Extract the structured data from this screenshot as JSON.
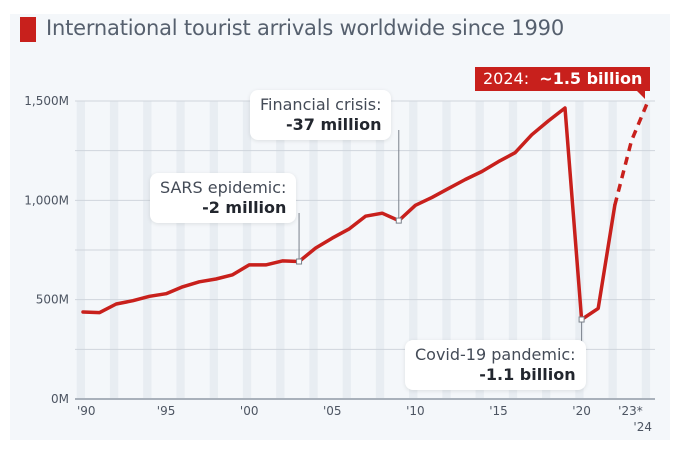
{
  "title": "International tourist arrivals worldwide since 1990",
  "colors": {
    "accent": "#c8201c",
    "line": "#c8201c",
    "background": "#f4f7fa",
    "grid": "#cfd5dc",
    "stripe": "#e8edf2"
  },
  "annotations": {
    "sars": {
      "label": "SARS epidemic:",
      "value": "-2 million",
      "year": 2003
    },
    "financial": {
      "label": "Financial crisis:",
      "value": "-37 million",
      "year": 2009
    },
    "covid": {
      "label": "Covid-19 pandemic:",
      "value": "-1.1 billion",
      "year": 2020
    },
    "forecast": {
      "prefix": "2024:",
      "value": "~1.5 billion",
      "year": 2024
    }
  },
  "chart_data": {
    "type": "line",
    "title": "International tourist arrivals worldwide since 1990",
    "xlabel": "",
    "ylabel": "",
    "ylim": [
      0,
      1500
    ],
    "y_ticks": [
      0,
      500,
      1000,
      1500
    ],
    "y_tick_labels": [
      "0M",
      "500M",
      "1,000M",
      "1,500M"
    ],
    "y_gridlines": [
      0,
      250,
      500,
      750,
      1000,
      1250,
      1500
    ],
    "x_tick_years": [
      1990,
      1995,
      2000,
      2005,
      2010,
      2015,
      2020,
      2023,
      2024
    ],
    "x_tick_labels": [
      "'90",
      "'95",
      "'00",
      "'05",
      "'10",
      "'15",
      "'20",
      "'23*",
      "'24"
    ],
    "grid": true,
    "legend": "none",
    "units": "million arrivals",
    "series": [
      {
        "name": "International tourist arrivals (actual)",
        "style": "solid",
        "x": [
          1990,
          1991,
          1992,
          1993,
          1994,
          1995,
          1996,
          1997,
          1998,
          1999,
          2000,
          2001,
          2002,
          2003,
          2004,
          2005,
          2006,
          2007,
          2008,
          2009,
          2010,
          2011,
          2012,
          2013,
          2014,
          2015,
          2016,
          2017,
          2018,
          2019,
          2020,
          2021,
          2022
        ],
        "values": [
          438,
          435,
          478,
          495,
          517,
          530,
          565,
          590,
          604,
          625,
          675,
          675,
          695,
          692,
          760,
          810,
          855,
          920,
          935,
          898,
          975,
          1015,
          1060,
          1105,
          1145,
          1195,
          1240,
          1330,
          1400,
          1465,
          400,
          456,
          975
        ]
      },
      {
        "name": "International tourist arrivals (estimate/forecast)",
        "style": "dashed",
        "x": [
          2022,
          2023,
          2024
        ],
        "values": [
          975,
          1300,
          1500
        ]
      }
    ],
    "marked_points": [
      {
        "x": 2003,
        "value": 692,
        "label": "SARS epidemic: -2 million"
      },
      {
        "x": 2009,
        "value": 898,
        "label": "Financial crisis: -37 million"
      },
      {
        "x": 2020,
        "value": 400,
        "label": "Covid-19 pandemic: -1.1 billion"
      },
      {
        "x": 2024,
        "value": 1500,
        "label": "2024: ~1.5 billion"
      }
    ]
  }
}
